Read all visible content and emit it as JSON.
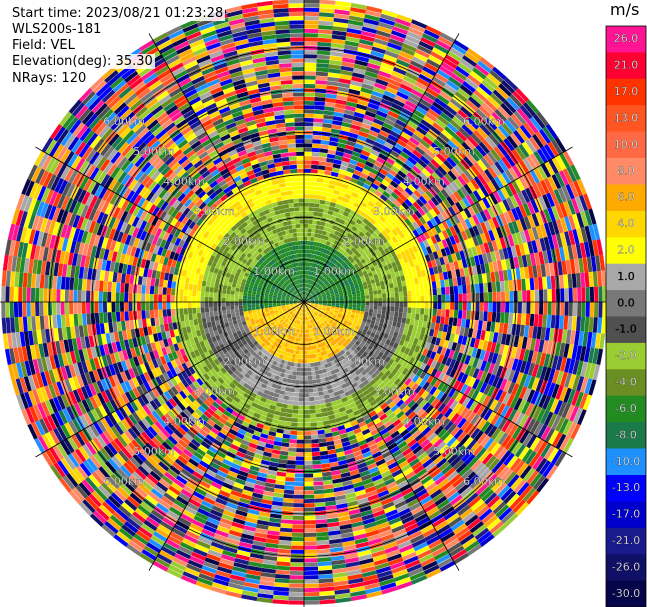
{
  "header": {
    "start_time": "Start time: 2023/08/21 01:23:28",
    "instrument": "WLS200s-181",
    "field": "Field: VEL",
    "elevation": "Elevation(deg): 35.30",
    "nrays": "NRays: 120"
  },
  "chart_data": {
    "type": "heatmap",
    "projection": "polar-ppi",
    "field": "VEL",
    "units": "m/s",
    "rays": 120,
    "range_rings_km": [
      1.0,
      2.0,
      3.0,
      4.0,
      5.0,
      6.0
    ],
    "ring_labels": [
      "1.00km",
      "2.00km",
      "3.00km",
      "4.00km",
      "5.00km",
      "6.00km"
    ],
    "spokes_deg": [
      0,
      30,
      60,
      90,
      120,
      150,
      180,
      210,
      240,
      270,
      300,
      330
    ],
    "colorbar": {
      "label": "m/s",
      "ticks": [
        "26.0",
        "21.0",
        "17.0",
        "13.0",
        "10.0",
        "8.0",
        "6.0",
        "4.0",
        "2.0",
        "1.0",
        "0.0",
        "-1.0",
        "-2.0",
        "-4.0",
        "-6.0",
        "-8.0",
        "-10.0",
        "-13.0",
        "-17.0",
        "-21.0",
        "-26.0",
        "-30.0"
      ],
      "colors": [
        "#ff1493",
        "#ff0033",
        "#ff3300",
        "#ff5522",
        "#ff6a44",
        "#ff8a66",
        "#ffaa00",
        "#ffd700",
        "#ffff00",
        "#a8a8a8",
        "#787878",
        "#505050",
        "#9acd32",
        "#6b8e23",
        "#228b22",
        "#1a7a4a",
        "#1e90ff",
        "#0000ff",
        "#0000cc",
        "#1a1a8c",
        "#101066",
        "#05054a"
      ]
    }
  }
}
